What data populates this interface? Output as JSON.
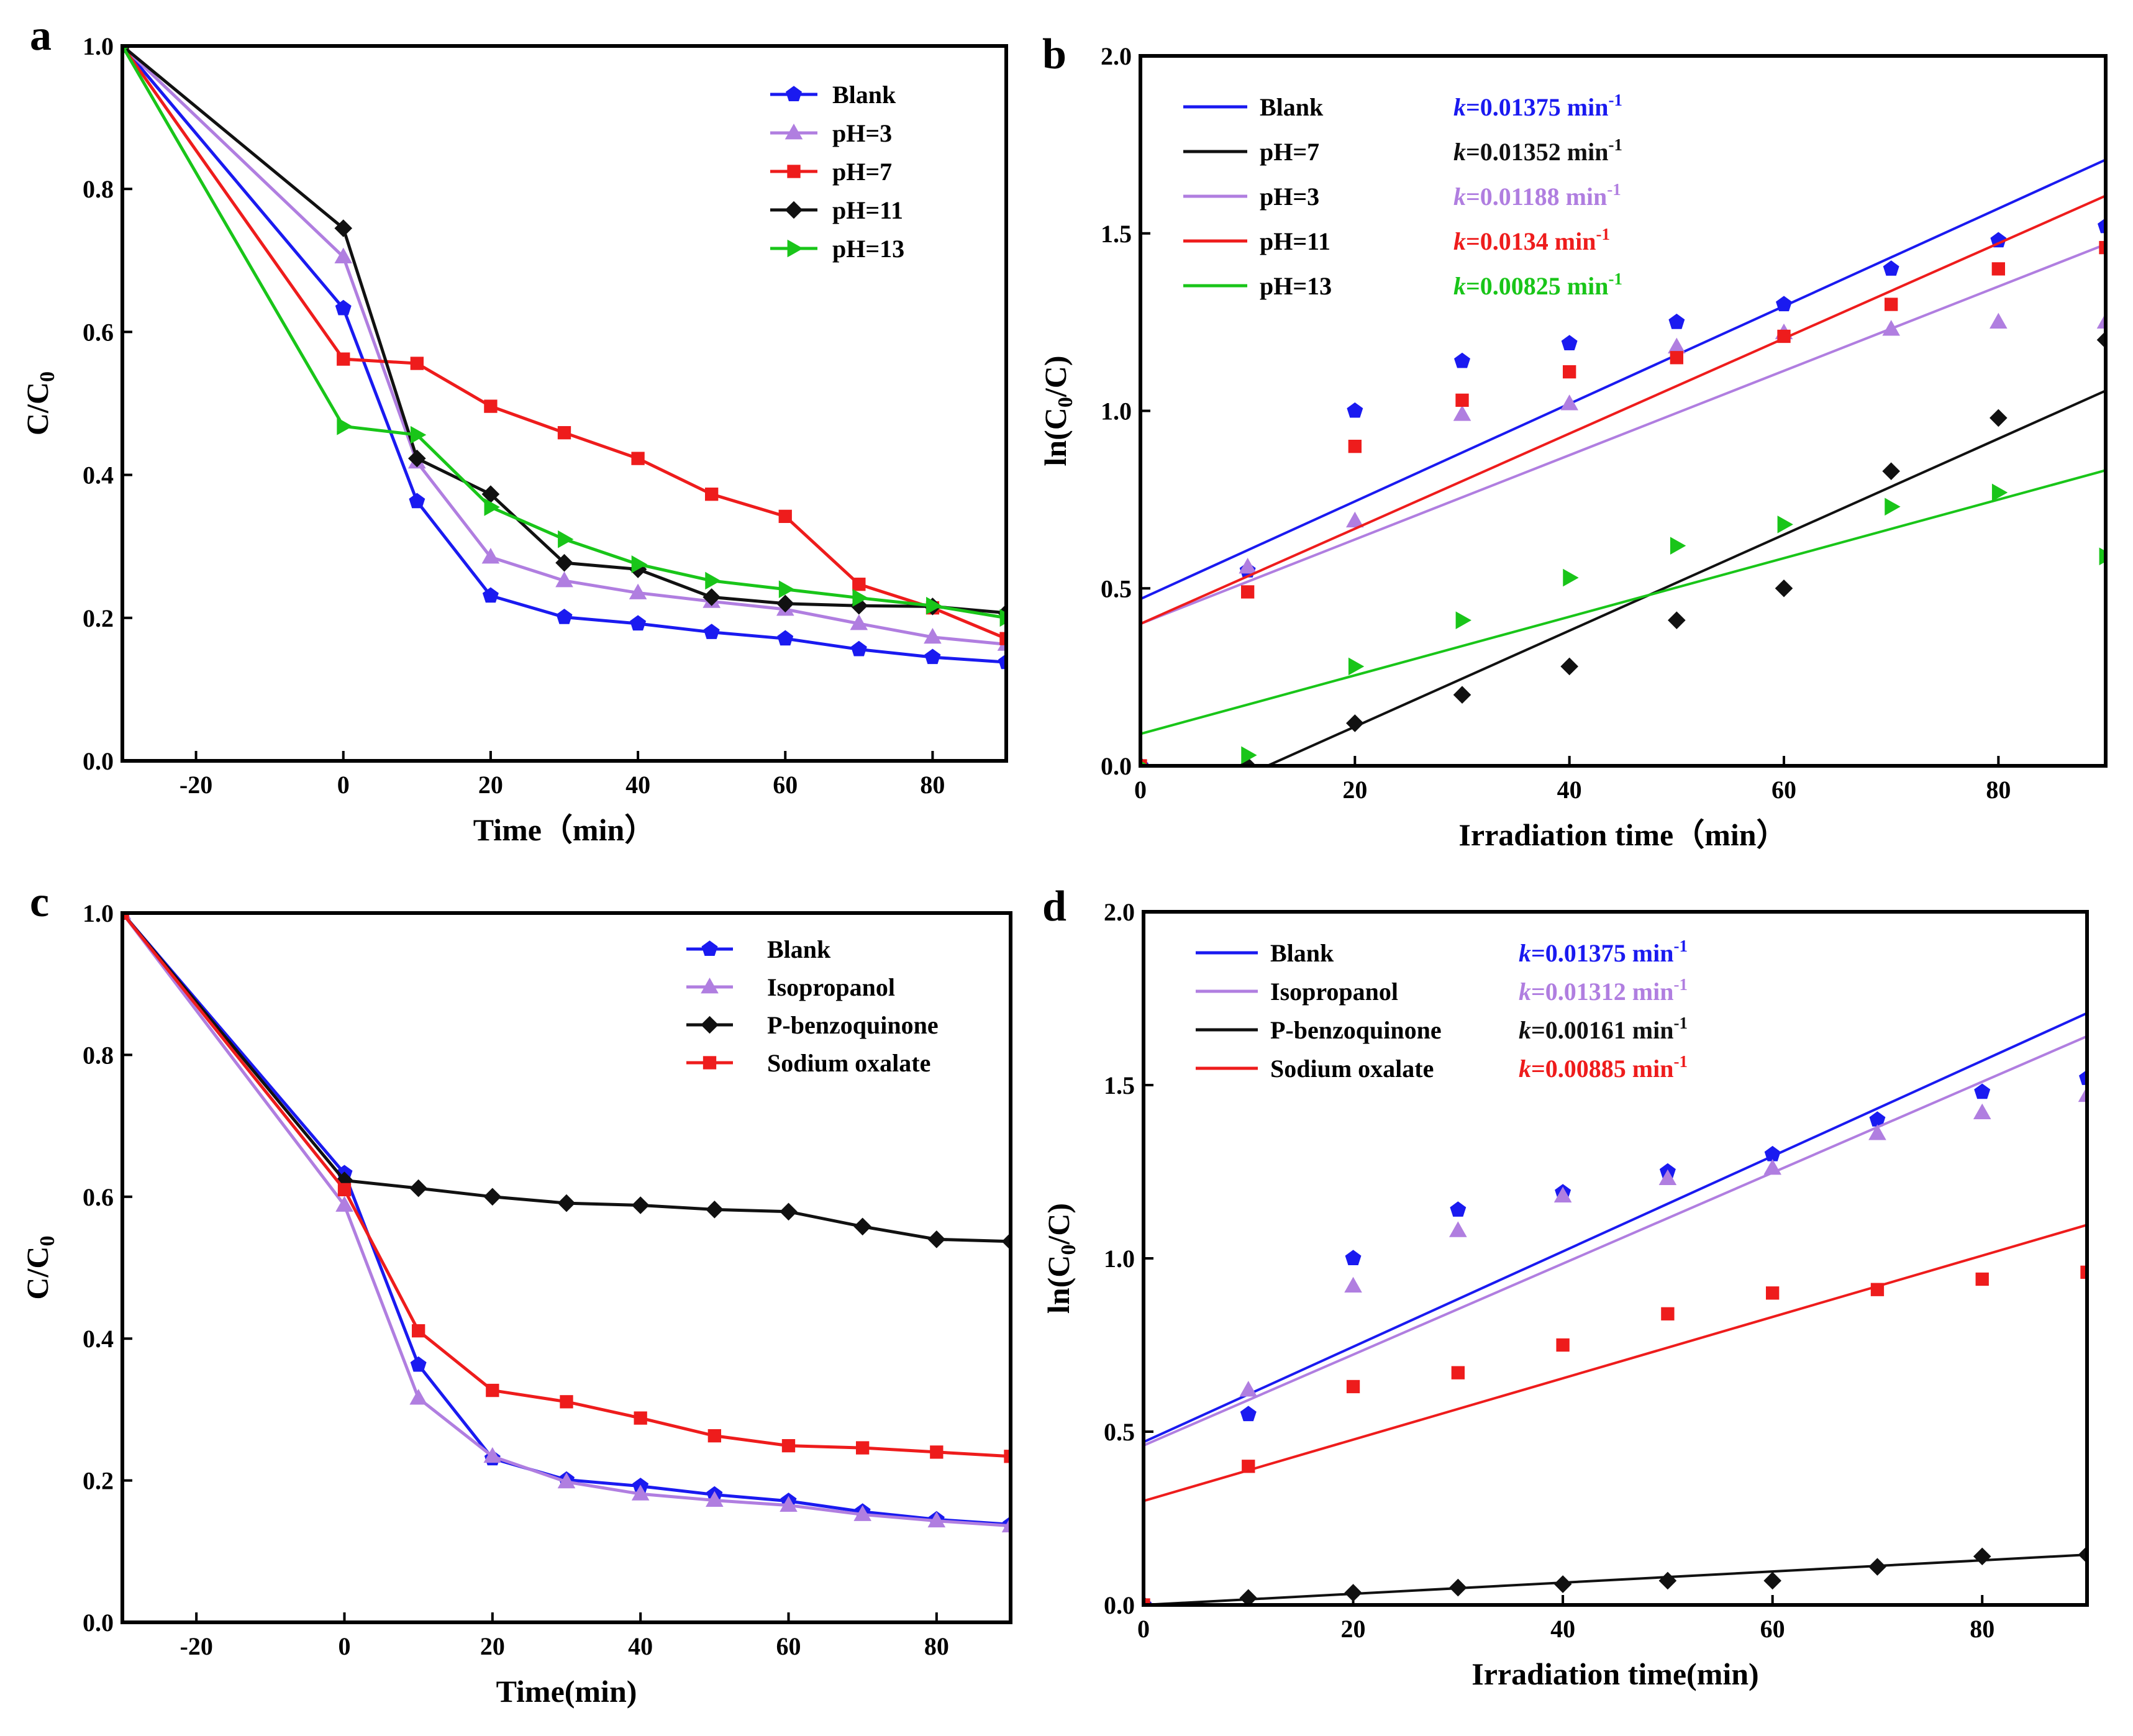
{
  "chart_data": [
    {
      "panel": "a",
      "type": "line",
      "xlabel": "Time（min）",
      "ylabel": "C/C0",
      "xlim": [
        -30,
        90
      ],
      "ylim": [
        0,
        1.0
      ],
      "xticks": [
        -20,
        0,
        20,
        40,
        60,
        80
      ],
      "yticks": [
        0.0,
        0.2,
        0.4,
        0.6,
        0.8,
        1.0
      ],
      "legend_position": "top-right",
      "x": [
        -30,
        0,
        10,
        20,
        30,
        40,
        50,
        60,
        70,
        80,
        90
      ],
      "series": [
        {
          "name": "Blank",
          "color": "#1a1af0",
          "marker": "pentagon",
          "values": [
            1.0,
            0.633,
            0.363,
            0.231,
            0.201,
            0.192,
            0.18,
            0.171,
            0.156,
            0.145,
            0.138
          ]
        },
        {
          "name": "pH=3",
          "color": "#b07ee0",
          "marker": "triangle-up",
          "values": [
            1.0,
            0.705,
            0.418,
            0.285,
            0.252,
            0.235,
            0.223,
            0.212,
            0.192,
            0.173,
            0.163
          ]
        },
        {
          "name": "pH=7",
          "color": "#ee1c1c",
          "marker": "square",
          "values": [
            1.0,
            0.562,
            0.556,
            0.496,
            0.459,
            0.423,
            0.373,
            0.342,
            0.247,
            0.214,
            0.171
          ]
        },
        {
          "name": "pH=11",
          "color": "#111111",
          "marker": "diamond",
          "values": [
            1.0,
            0.745,
            0.423,
            0.373,
            0.277,
            0.268,
            0.229,
            0.22,
            0.217,
            0.216,
            0.207
          ]
        },
        {
          "name": "pH=13",
          "color": "#19c519",
          "marker": "triangle-right",
          "values": [
            1.0,
            0.468,
            0.456,
            0.355,
            0.31,
            0.275,
            0.252,
            0.24,
            0.228,
            0.217,
            0.2
          ]
        }
      ]
    },
    {
      "panel": "b",
      "type": "scatter",
      "xlabel": "Irradiation time（min）",
      "ylabel": "ln(C0/C)",
      "xlim": [
        0,
        90
      ],
      "ylim": [
        0,
        2.0
      ],
      "xticks": [
        0,
        20,
        40,
        60,
        80
      ],
      "yticks": [
        0.0,
        0.5,
        1.0,
        1.5,
        2.0
      ],
      "legend_position": "top-left",
      "x": [
        0,
        10,
        20,
        30,
        40,
        50,
        60,
        70,
        80,
        90
      ],
      "series": [
        {
          "name": "Blank",
          "color": "#1a1af0",
          "marker": "pentagon",
          "k": "0.01375",
          "values": [
            0,
            0.55,
            1.0,
            1.14,
            1.19,
            1.25,
            1.3,
            1.4,
            1.48,
            1.52
          ],
          "fit": {
            "intercept": 0.47,
            "slope": 0.01375
          }
        },
        {
          "name": "pH=7",
          "color": "#111111",
          "marker": "diamond",
          "k": "0.01352",
          "values": [
            0,
            0.0,
            0.12,
            0.2,
            0.28,
            0.41,
            0.5,
            0.83,
            0.98,
            1.2
          ],
          "fit": {
            "intercept": -0.16,
            "slope": 0.01352
          }
        },
        {
          "name": "pH=3",
          "color": "#b07ee0",
          "marker": "triangle-up",
          "k": "0.01188",
          "values": [
            0,
            0.56,
            0.69,
            0.99,
            1.02,
            1.18,
            1.22,
            1.23,
            1.25,
            1.25
          ],
          "fit": {
            "intercept": 0.4,
            "slope": 0.01188
          }
        },
        {
          "name": "pH=11",
          "color": "#ee1c1c",
          "marker": "square",
          "k": "0.0134",
          "values": [
            0,
            0.49,
            0.9,
            1.03,
            1.11,
            1.15,
            1.21,
            1.3,
            1.4,
            1.46
          ],
          "fit": {
            "intercept": 0.4,
            "slope": 0.0134
          }
        },
        {
          "name": "pH=13",
          "color": "#19c519",
          "marker": "triangle-right",
          "k": "0.00825",
          "values": [
            0,
            0.03,
            0.28,
            0.41,
            0.53,
            0.62,
            0.68,
            0.73,
            0.77,
            0.59
          ],
          "fit": {
            "intercept": 0.09,
            "slope": 0.00825
          }
        }
      ],
      "k_prefix": "k",
      "k_unit": "min",
      "k_exp": "-1"
    },
    {
      "panel": "c",
      "type": "line",
      "xlabel": "Time(min)",
      "ylabel": "C/C0",
      "xlim": [
        -30,
        90
      ],
      "ylim": [
        0,
        1.0
      ],
      "xticks": [
        -20,
        0,
        20,
        40,
        60,
        80
      ],
      "yticks": [
        0.0,
        0.2,
        0.4,
        0.6,
        0.8,
        1.0
      ],
      "legend_position": "top-right",
      "x": [
        -30,
        0,
        10,
        20,
        30,
        40,
        50,
        60,
        70,
        80,
        90
      ],
      "series": [
        {
          "name": "Blank",
          "color": "#1a1af0",
          "marker": "pentagon",
          "values": [
            1.0,
            0.633,
            0.363,
            0.231,
            0.201,
            0.192,
            0.18,
            0.171,
            0.156,
            0.145,
            0.138
          ]
        },
        {
          "name": "Isopropanol",
          "color": "#b07ee0",
          "marker": "triangle-up",
          "values": [
            1.0,
            0.588,
            0.316,
            0.234,
            0.198,
            0.181,
            0.172,
            0.165,
            0.152,
            0.143,
            0.136
          ]
        },
        {
          "name": "P-benzoquinone",
          "color": "#111111",
          "marker": "diamond",
          "values": [
            1.0,
            0.623,
            0.612,
            0.6,
            0.591,
            0.588,
            0.582,
            0.579,
            0.558,
            0.54,
            0.537
          ]
        },
        {
          "name": "Sodium oxalate",
          "color": "#ee1c1c",
          "marker": "square",
          "values": [
            1.0,
            0.61,
            0.411,
            0.327,
            0.311,
            0.288,
            0.263,
            0.249,
            0.246,
            0.24,
            0.234
          ]
        }
      ]
    },
    {
      "panel": "d",
      "type": "scatter",
      "xlabel": "Irradiation time(min)",
      "ylabel": "ln(C0/C)",
      "xlim": [
        0,
        90
      ],
      "ylim": [
        0,
        2.0
      ],
      "xticks": [
        0,
        20,
        40,
        60,
        80
      ],
      "yticks": [
        0.0,
        0.5,
        1.0,
        1.5,
        2.0
      ],
      "legend_position": "top-left",
      "x": [
        0,
        10,
        20,
        30,
        40,
        50,
        60,
        70,
        80,
        90
      ],
      "series": [
        {
          "name": "Blank",
          "color": "#1a1af0",
          "marker": "pentagon",
          "k": "0.01375",
          "values": [
            0,
            0.55,
            1.0,
            1.14,
            1.19,
            1.25,
            1.3,
            1.4,
            1.48,
            1.52
          ],
          "fit": {
            "intercept": 0.47,
            "slope": 0.01375
          }
        },
        {
          "name": "Isopropanol",
          "color": "#b07ee0",
          "marker": "triangle-up",
          "k": "0.01312",
          "values": [
            0,
            0.62,
            0.92,
            1.08,
            1.18,
            1.23,
            1.26,
            1.36,
            1.42,
            1.47
          ],
          "fit": {
            "intercept": 0.46,
            "slope": 0.01312
          }
        },
        {
          "name": "P-benzoquinone",
          "color": "#111111",
          "marker": "diamond",
          "k": "0.00161",
          "values": [
            0,
            0.02,
            0.035,
            0.05,
            0.06,
            0.07,
            0.07,
            0.11,
            0.14,
            0.145
          ],
          "fit": {
            "intercept": 0.0,
            "slope": 0.00161
          }
        },
        {
          "name": "Sodium oxalate",
          "color": "#ee1c1c",
          "marker": "square",
          "k": "0.00885",
          "values": [
            0,
            0.4,
            0.63,
            0.67,
            0.75,
            0.84,
            0.9,
            0.91,
            0.94,
            0.96
          ],
          "fit": {
            "intercept": 0.3,
            "slope": 0.00885
          }
        }
      ],
      "k_prefix": "k",
      "k_unit": "min",
      "k_exp": "-1"
    }
  ]
}
